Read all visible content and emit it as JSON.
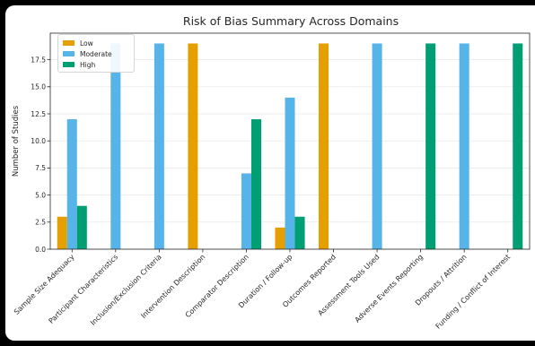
{
  "chart_data": {
    "type": "bar",
    "title": "Risk of Bias Summary Across Domains",
    "xlabel": "",
    "ylabel": "Number of Studies",
    "ylim": [
      0,
      19.95
    ],
    "yticks": [
      "0.0",
      "2.5",
      "5.0",
      "7.5",
      "10.0",
      "12.5",
      "15.0",
      "17.5"
    ],
    "grid": true,
    "legend_position": "top-left",
    "categories": [
      "Sample Size Adequacy",
      "Participant Characteristics",
      "Inclusion/Exclusion Criteria",
      "Intervention Description",
      "Comparator Description",
      "Duration / Follow-up",
      "Outcomes Reported",
      "Assessment Tools Used",
      "Adverse Events Reporting",
      "Dropouts / Attrition",
      "Funding / Conflict of Interest"
    ],
    "series": [
      {
        "name": "Low",
        "color": "#E69F00",
        "values": [
          3,
          0,
          0,
          19,
          0,
          2,
          19,
          0,
          0,
          0,
          0
        ]
      },
      {
        "name": "Moderate",
        "color": "#56B4E9",
        "values": [
          12,
          19,
          19,
          0,
          7,
          14,
          0,
          19,
          0,
          19,
          0
        ]
      },
      {
        "name": "High",
        "color": "#009E73",
        "values": [
          4,
          0,
          0,
          0,
          12,
          3,
          0,
          0,
          19,
          0,
          19
        ]
      }
    ]
  }
}
